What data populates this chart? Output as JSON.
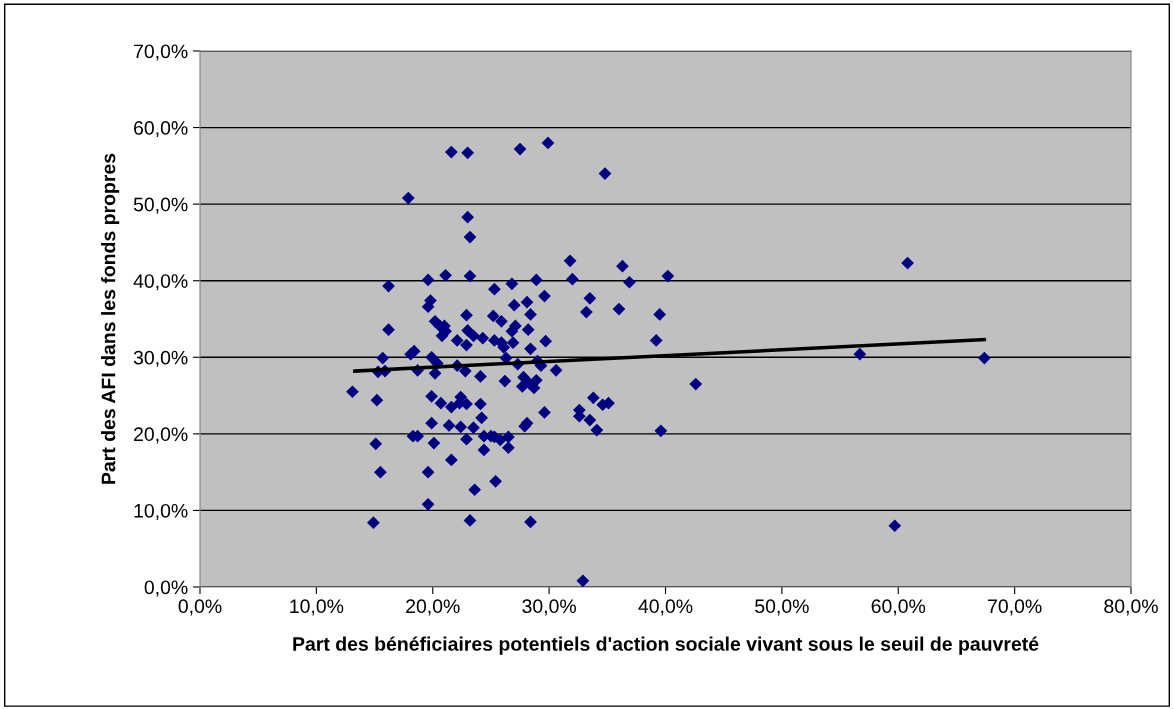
{
  "chart_data": {
    "type": "scatter",
    "xlabel": "Part des bénéficiaires potentiels d'action sociale vivant sous le seuil de pauvreté",
    "ylabel": "Part des AFI dans les fonds propres",
    "xlim": [
      0,
      80
    ],
    "ylim": [
      0,
      70
    ],
    "xticks": [
      {
        "value": 0,
        "label": "0,0%"
      },
      {
        "value": 10,
        "label": "10,0%"
      },
      {
        "value": 20,
        "label": "20,0%"
      },
      {
        "value": 30,
        "label": "30,0%"
      },
      {
        "value": 40,
        "label": "40,0%"
      },
      {
        "value": 50,
        "label": "50,0%"
      },
      {
        "value": 60,
        "label": "60,0%"
      },
      {
        "value": 70,
        "label": "70,0%"
      },
      {
        "value": 80,
        "label": "80,0%"
      }
    ],
    "yticks": [
      {
        "value": 0,
        "label": "0,0%"
      },
      {
        "value": 10,
        "label": "10,0%"
      },
      {
        "value": 20,
        "label": "20,0%"
      },
      {
        "value": 30,
        "label": "30,0%"
      },
      {
        "value": 40,
        "label": "40,0%"
      },
      {
        "value": 50,
        "label": "50,0%"
      },
      {
        "value": 60,
        "label": "60,0%"
      },
      {
        "value": 70,
        "label": "70,0%"
      }
    ],
    "grid": "y",
    "marker": "diamond",
    "series": [
      {
        "color": "#000080",
        "x": [
          17.9,
          16.2,
          16.2,
          15.7,
          15.3,
          15.9,
          13.1,
          15.2,
          15.1,
          15.5,
          14.9,
          18.1,
          18.4,
          18.7,
          18.3,
          18.7,
          19.6,
          19.6,
          19.8,
          19.9,
          19.9,
          19.9,
          19.6,
          19.6,
          20.1,
          20.2,
          20.4,
          20.2,
          20.8,
          20.6,
          21.1,
          21.0,
          21.1,
          20.7,
          21.4,
          21.6,
          21.6,
          21.6,
          23.0,
          22.1,
          22.1,
          22.3,
          22.4,
          22.4,
          22.8,
          22.9,
          23.0,
          22.9,
          23.0,
          23.2,
          23.2,
          22.9,
          22.9,
          23.2,
          23.5,
          23.5,
          23.6,
          24.1,
          24.1,
          24.2,
          24.4,
          24.4,
          24.3,
          25.0,
          25.2,
          25.3,
          25.3,
          25.3,
          25.4,
          25.8,
          25.9,
          25.9,
          26.1,
          26.2,
          26.3,
          26.5,
          26.5,
          26.8,
          26.8,
          26.9,
          27.0,
          27.1,
          27.3,
          27.5,
          27.8,
          27.7,
          28.1,
          27.9,
          28.3,
          28.2,
          28.1,
          28.4,
          28.4,
          28.7,
          28.4,
          28.9,
          28.9,
          29.0,
          29.3,
          29.6,
          29.6,
          29.7,
          29.9,
          30.6,
          31.8,
          32.0,
          32.6,
          32.6,
          32.9,
          33.2,
          33.5,
          33.5,
          33.8,
          34.1,
          34.6,
          35.1,
          34.8,
          36.0,
          36.3,
          36.9,
          39.2,
          39.5,
          39.6,
          40.2,
          42.6,
          56.7,
          59.7,
          60.8,
          67.4
        ],
        "values": [
          50.8,
          39.3,
          33.6,
          29.9,
          28.1,
          28.2,
          25.5,
          24.4,
          18.7,
          15.0,
          8.4,
          30.4,
          30.8,
          28.3,
          19.7,
          19.7,
          40.1,
          36.6,
          37.4,
          30.0,
          24.9,
          21.4,
          15.0,
          10.8,
          18.8,
          34.7,
          29.2,
          27.9,
          32.8,
          34.1,
          40.7,
          34.1,
          33.4,
          24.0,
          21.1,
          23.5,
          16.6,
          56.8,
          56.7,
          32.2,
          28.9,
          24.0,
          24.8,
          20.9,
          28.2,
          35.5,
          33.5,
          31.6,
          48.3,
          45.7,
          40.6,
          23.9,
          19.3,
          8.7,
          32.8,
          20.8,
          12.7,
          27.5,
          23.9,
          22.1,
          19.7,
          17.9,
          32.5,
          19.7,
          35.4,
          38.9,
          32.2,
          19.6,
          13.8,
          19.2,
          34.7,
          31.9,
          31.3,
          26.9,
          29.9,
          18.2,
          19.6,
          39.6,
          33.4,
          31.9,
          36.8,
          34.1,
          29.1,
          57.2,
          27.4,
          26.2,
          21.4,
          21.0,
          26.6,
          33.6,
          37.2,
          35.6,
          31.1,
          26.0,
          8.5,
          40.1,
          27.0,
          29.5,
          28.9,
          38.0,
          22.8,
          32.1,
          58.0,
          28.3,
          42.6,
          40.2,
          23.1,
          22.3,
          0.8,
          35.9,
          37.7,
          21.8,
          24.7,
          20.5,
          23.8,
          24.0,
          54.0,
          36.3,
          41.9,
          39.8,
          32.2,
          35.6,
          20.4,
          40.6,
          26.5,
          30.4,
          8.0,
          42.3,
          29.9
        ]
      },
      {
        "type": "line",
        "color": "#000000",
        "marker": "none",
        "x": [
          13.3,
          67.4
        ],
        "values": [
          28.2,
          32.3
        ]
      }
    ]
  }
}
